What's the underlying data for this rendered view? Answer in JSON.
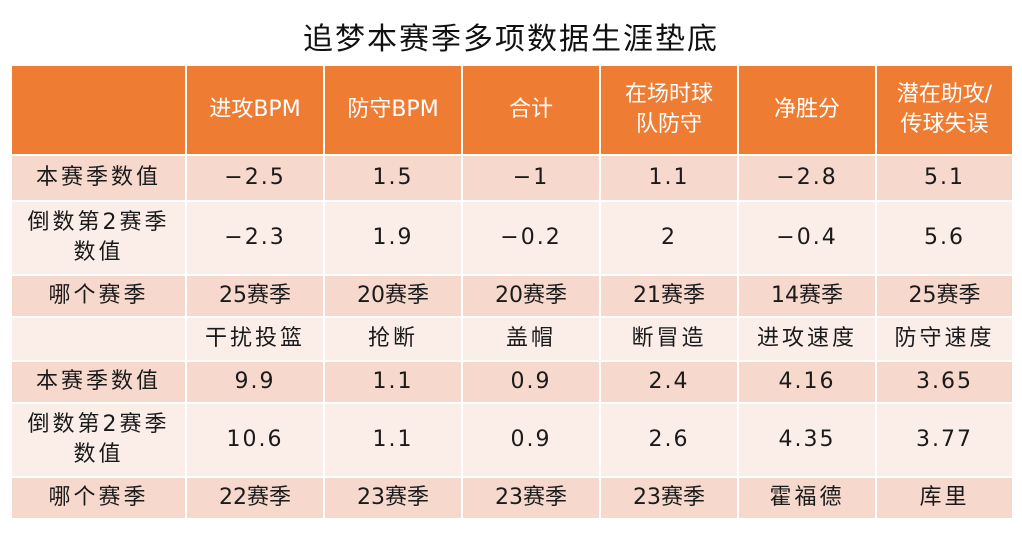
{
  "title": "追梦本赛季多项数据生涯垫底",
  "header": [
    "",
    "进攻BPM",
    "防守BPM",
    "合计",
    "在场时球\n队防守",
    "净胜分",
    "潜在助攻/\n传球失误"
  ],
  "rows": [
    [
      "本赛季数值",
      "−2.5",
      "1.5",
      "−1",
      "1.1",
      "−2.8",
      "5.1"
    ],
    [
      "倒数第2赛季数值",
      "−2.3",
      "1.9",
      "−0.2",
      "2",
      "−0.4",
      "5.6"
    ],
    [
      "哪个赛季",
      "25赛季",
      "20赛季",
      "20赛季",
      "21赛季",
      "14赛季",
      "25赛季"
    ],
    [
      "",
      "干扰投篮",
      "抢断",
      "盖帽",
      "断冒造",
      "进攻速度",
      "防守速度"
    ],
    [
      "本赛季数值",
      "9.9",
      "1.1",
      "0.9",
      "2.4",
      "4.16",
      "3.65"
    ],
    [
      "倒数第2赛季数值",
      "10.6",
      "1.1",
      "0.9",
      "2.6",
      "4.35",
      "3.77"
    ],
    [
      "哪个赛季",
      "22赛季",
      "23赛季",
      "23赛季",
      "23赛季",
      "霍福德",
      "库里"
    ]
  ],
  "colors": {
    "header_bg": "#ef7c33",
    "row_dark": "#f6d8cd",
    "row_light": "#fbeee9"
  }
}
